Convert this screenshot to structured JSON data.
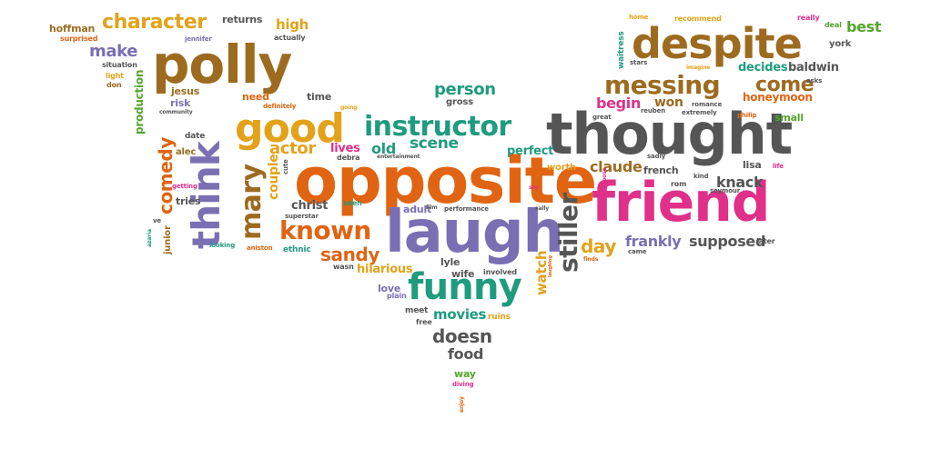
{
  "colors": {
    "orange": "#e06412",
    "gold": "#e3a21a",
    "brown": "#9d6b1f",
    "purple": "#7a6fb3",
    "teal": "#1f9b7e",
    "green": "#55a52d",
    "pink": "#e0308a",
    "gray": "#555555"
  },
  "words": [
    "opposite",
    "laugh",
    "thought",
    "friend",
    "despite",
    "polly",
    "think",
    "good",
    "funny",
    "instructor",
    "messing",
    "mary",
    "known",
    "stiller",
    "character",
    "come",
    "comedy",
    "sandy",
    "person",
    "doesn",
    "actor",
    "day",
    "scene",
    "frankly",
    "supposed",
    "claude",
    "make",
    "knack",
    "watch",
    "movies",
    "begin",
    "old",
    "food",
    "hilarious",
    "high",
    "production",
    "couple",
    "christ",
    "perfect",
    "won",
    "honeymoon",
    "lives",
    "decides",
    "baldwin",
    "best",
    "hoffman",
    "returns",
    "small",
    "french",
    "lisa",
    "jesus",
    "risk",
    "tries",
    "need",
    "time",
    "wife",
    "love",
    "lyle",
    "adult",
    "alec",
    "way",
    "gross",
    "worth",
    "ethnic",
    "date",
    "meet",
    "plain",
    "free",
    "involved",
    "ruins",
    "seen",
    "wasn",
    "junior",
    "situation",
    "light",
    "don",
    "superstar",
    "cute",
    "looking",
    "aniston",
    "getting",
    "entertainment",
    "debra",
    "reuben",
    "romance",
    "extremely",
    "philip",
    "seymour",
    "kind",
    "rom",
    "waitress",
    "stars",
    "imagine",
    "recommend",
    "really",
    "deal",
    "york",
    "asks",
    "home",
    "later",
    "life",
    "came",
    "finds",
    "surprised",
    "jennifer",
    "actually",
    "definitely",
    "going",
    "community",
    "great",
    "sadly",
    "boss",
    "azaria",
    "ve",
    "say",
    "performance",
    "film",
    "sally",
    "laughing",
    "diving",
    "enjoy"
  ]
}
